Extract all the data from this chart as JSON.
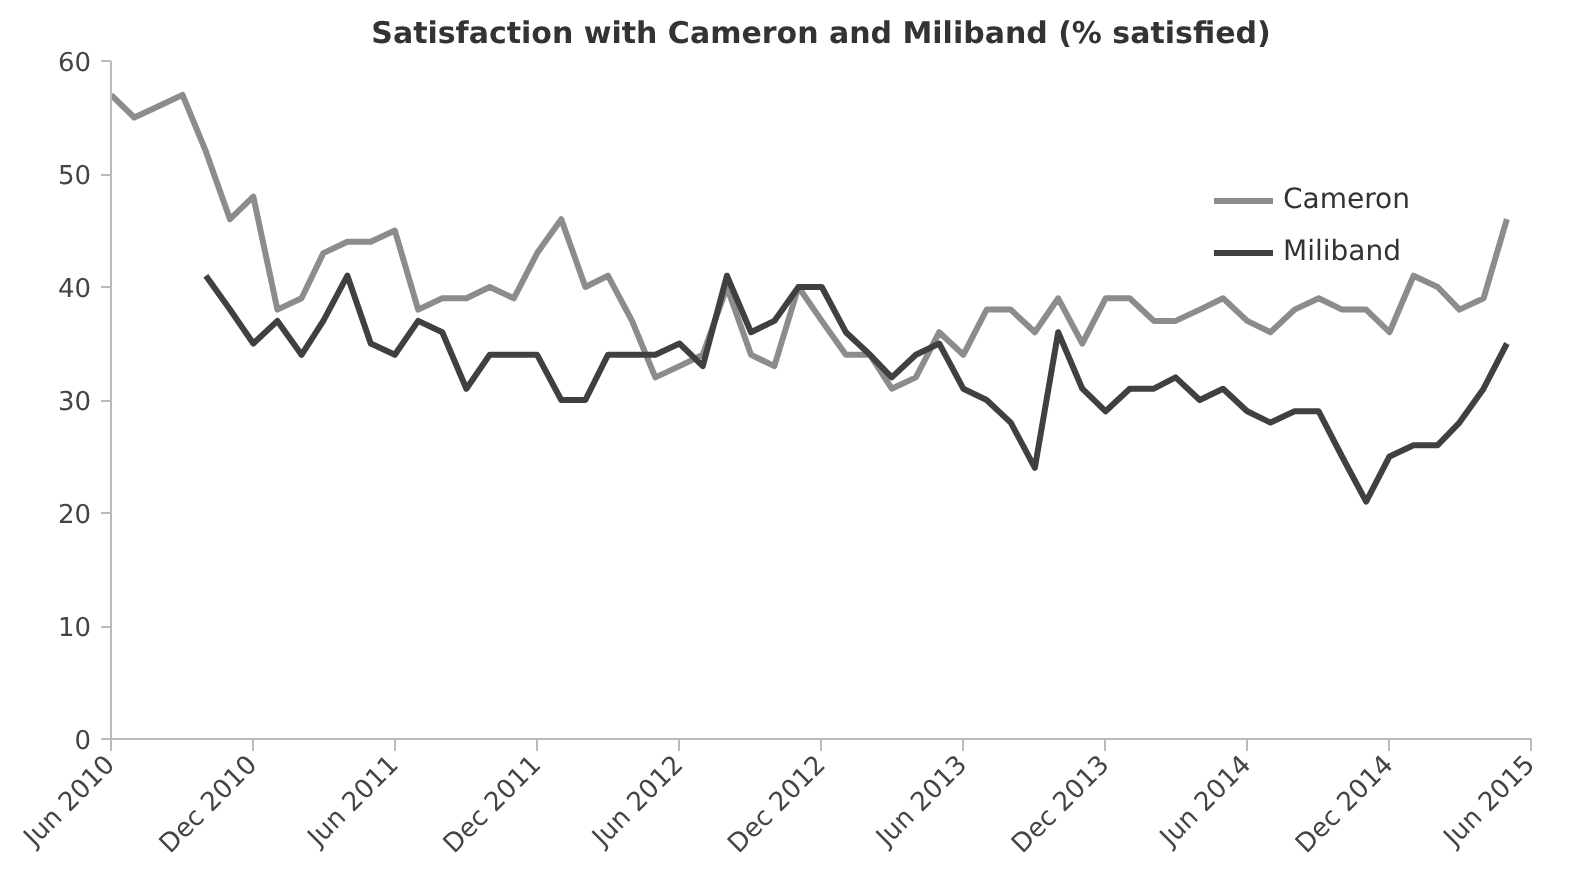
{
  "chart_data": {
    "type": "line",
    "title": "Satisfaction with Cameron and Miliband (% satisfied)",
    "x": [
      "2010-06",
      "2010-07",
      "2010-08",
      "2010-09",
      "2010-10",
      "2010-11",
      "2010-12",
      "2011-01",
      "2011-02",
      "2011-03",
      "2011-04",
      "2011-05",
      "2011-06",
      "2011-07",
      "2011-08",
      "2011-09",
      "2011-10",
      "2011-11",
      "2011-12",
      "2012-01",
      "2012-02",
      "2012-03",
      "2012-04",
      "2012-05",
      "2012-06",
      "2012-07",
      "2012-08",
      "2012-09",
      "2012-10",
      "2012-11",
      "2012-12",
      "2013-01",
      "2013-02",
      "2013-03",
      "2013-04",
      "2013-05",
      "2013-06",
      "2013-07",
      "2013-08",
      "2013-09",
      "2013-10",
      "2013-11",
      "2013-12",
      "2014-01",
      "2014-02",
      "2014-03",
      "2014-04",
      "2014-05",
      "2014-06",
      "2014-07",
      "2014-08",
      "2014-09",
      "2014-10",
      "2014-11",
      "2014-12",
      "2015-01",
      "2015-02",
      "2015-03",
      "2015-04",
      "2015-05"
    ],
    "series": [
      {
        "name": "Cameron",
        "color": "#8c8c8c",
        "values": [
          57,
          55,
          56,
          57,
          52,
          46,
          48,
          38,
          39,
          43,
          44,
          44,
          45,
          38,
          39,
          39,
          40,
          39,
          43,
          46,
          40,
          41,
          37,
          32,
          33,
          34,
          40,
          34,
          33,
          40,
          37,
          34,
          34,
          31,
          32,
          36,
          34,
          38,
          38,
          36,
          39,
          35,
          39,
          39,
          37,
          37,
          38,
          39,
          37,
          36,
          38,
          39,
          38,
          38,
          36,
          41,
          40,
          38,
          39,
          46
        ]
      },
      {
        "name": "Miliband",
        "color": "#404040",
        "values": [
          null,
          null,
          null,
          null,
          41,
          38,
          35,
          37,
          34,
          37,
          41,
          35,
          34,
          37,
          36,
          31,
          34,
          34,
          34,
          30,
          30,
          34,
          34,
          34,
          35,
          33,
          41,
          36,
          37,
          40,
          40,
          36,
          34,
          32,
          34,
          35,
          31,
          30,
          28,
          24,
          36,
          31,
          29,
          31,
          31,
          32,
          30,
          31,
          29,
          28,
          29,
          29,
          25,
          21,
          25,
          26,
          26,
          28,
          31,
          35
        ]
      }
    ],
    "xlim": [
      "2010-06",
      "2015-06"
    ],
    "xticks": [
      {
        "value": "2010-06",
        "label": "Jun 2010"
      },
      {
        "value": "2010-12",
        "label": "Dec 2010"
      },
      {
        "value": "2011-06",
        "label": "Jun 2011"
      },
      {
        "value": "2011-12",
        "label": "Dec 2011"
      },
      {
        "value": "2012-06",
        "label": "Jun 2012"
      },
      {
        "value": "2012-12",
        "label": "Dec 2012"
      },
      {
        "value": "2013-06",
        "label": "Jun 2013"
      },
      {
        "value": "2013-12",
        "label": "Dec 2013"
      },
      {
        "value": "2014-06",
        "label": "Jun 2014"
      },
      {
        "value": "2014-12",
        "label": "Dec 2014"
      },
      {
        "value": "2015-06",
        "label": "Jun 2015"
      }
    ],
    "ylim": [
      0,
      60
    ],
    "yticks": [
      0,
      10,
      20,
      30,
      40,
      50,
      60
    ],
    "grid": false,
    "legend": "top right",
    "marker": "none",
    "line_style": "solid"
  }
}
